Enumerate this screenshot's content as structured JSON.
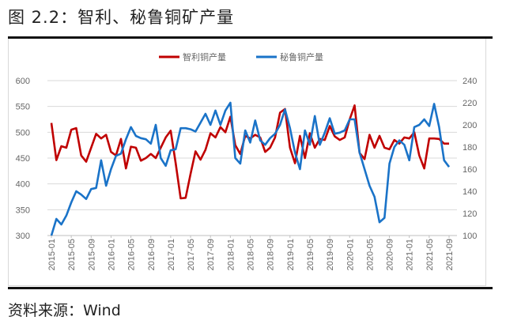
{
  "figure": {
    "title": "图 2.2：智利、秘鲁铜矿产量",
    "source": "资料来源：Wind"
  },
  "legend": [
    {
      "label": "智利铜产量",
      "color": "#c00000"
    },
    {
      "label": "秘鲁铜产量",
      "color": "#1a73c8"
    }
  ],
  "chart_data": {
    "type": "line",
    "title": "智利、秘鲁铜矿产量",
    "xlabel": "",
    "ylabel_left": "",
    "ylabel_right": "",
    "grid": true,
    "legend_position": "top",
    "x_start": "2015-01",
    "x_end": "2021-09",
    "x_tick_labels": [
      "2015-01",
      "2015-05",
      "2015-09",
      "2016-01",
      "2016-05",
      "2016-09",
      "2017-01",
      "2017-05",
      "2017-09",
      "2018-01",
      "2018-05",
      "2018-09",
      "2019-01",
      "2019-05",
      "2019-09",
      "2020-01",
      "2020-05",
      "2020-09",
      "2021-01",
      "2021-05",
      "2021-09"
    ],
    "y_left": {
      "min": 300,
      "max": 600,
      "step": 50,
      "ticks": [
        300,
        350,
        400,
        450,
        500,
        550,
        600
      ]
    },
    "y_right": {
      "min": 100,
      "max": 240,
      "step": 20,
      "ticks": [
        100,
        120,
        140,
        160,
        180,
        200,
        220,
        240
      ]
    },
    "series": [
      {
        "name": "智利铜产量",
        "axis": "left",
        "color": "#c00000",
        "values": [
          518,
          446,
          473,
          470,
          505,
          508,
          455,
          443,
          470,
          497,
          488,
          495,
          462,
          455,
          487,
          430,
          472,
          470,
          445,
          450,
          458,
          450,
          470,
          490,
          503,
          440,
          372,
          373,
          420,
          463,
          447,
          466,
          498,
          490,
          510,
          500,
          530,
          475,
          458,
          493,
          488,
          495,
          490,
          462,
          470,
          490,
          538,
          545,
          470,
          440,
          493,
          450,
          498,
          470,
          487,
          485,
          512,
          492,
          485,
          490,
          525,
          552,
          460,
          448,
          495,
          470,
          493,
          470,
          467,
          485,
          478,
          490,
          488,
          500,
          455,
          430,
          488,
          488,
          487,
          478,
          478
        ],
        "values_end": "2021-07"
      },
      {
        "name": "秘鲁铜产量",
        "axis": "right",
        "color": "#1a73c8",
        "values": [
          100,
          115,
          110,
          118,
          130,
          140,
          137,
          133,
          142,
          143,
          168,
          145,
          160,
          172,
          174,
          187,
          198,
          190,
          188,
          187,
          183,
          200,
          170,
          163,
          177,
          178,
          197,
          197,
          196,
          194,
          202,
          210,
          200,
          213,
          200,
          213,
          220,
          170,
          165,
          195,
          184,
          204,
          186,
          182,
          188,
          192,
          200,
          214,
          197,
          175,
          160,
          195,
          182,
          208,
          182,
          193,
          206,
          192,
          193,
          195,
          205,
          205,
          175,
          160,
          145,
          135,
          112,
          116,
          165,
          180,
          186,
          182,
          168,
          198,
          200,
          205,
          199,
          219,
          198,
          168,
          162
        ]
      }
    ]
  },
  "axes_labels": {
    "left": [
      "600",
      "550",
      "500",
      "450",
      "400",
      "350",
      "300"
    ],
    "right": [
      "240",
      "220",
      "200",
      "180",
      "160",
      "140",
      "120",
      "100"
    ]
  }
}
